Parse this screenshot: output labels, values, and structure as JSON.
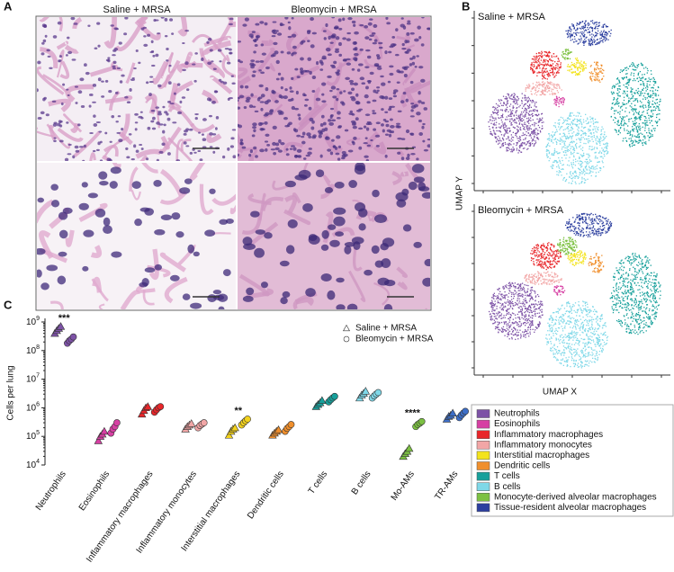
{
  "panel_a": {
    "label": "A",
    "titles": [
      "Saline + MRSA",
      "Bleomycin + MRSA"
    ]
  },
  "panel_b": {
    "label": "B",
    "plot_titles": [
      "Saline + MRSA",
      "Bleomycin + MRSA"
    ],
    "x_label": "UMAP X",
    "y_label": "UMAP Y",
    "legend": [
      {
        "name": "Neutrophils",
        "color": "#7d52a6"
      },
      {
        "name": "Eosinophils",
        "color": "#d63fa3"
      },
      {
        "name": "Inflammatory macrophages",
        "color": "#e8262a"
      },
      {
        "name": "Inflammatory monocytes",
        "color": "#f2a6a6"
      },
      {
        "name": "Interstitial macrophages",
        "color": "#f3e31c"
      },
      {
        "name": "Dendritic cells",
        "color": "#f08f2c"
      },
      {
        "name": "T cells",
        "color": "#17a09b"
      },
      {
        "name": "B cells",
        "color": "#7fd8e8"
      },
      {
        "name": "Monocyte-derived alveolar macrophages",
        "color": "#7cc142"
      },
      {
        "name": "Tissue-resident alveolar macrophages",
        "color": "#2c3f9f"
      }
    ]
  },
  "chart_data": {
    "type": "scatter",
    "label": "C",
    "y_label": "Cells per lung",
    "log_scale": true,
    "ylim": [
      10000,
      1000000000
    ],
    "yticks": [
      {
        "value": 10000,
        "label": "10",
        "exponent": "4"
      },
      {
        "value": 100000,
        "label": "10",
        "exponent": "5"
      },
      {
        "value": 1000000,
        "label": "10",
        "exponent": "6"
      },
      {
        "value": 10000000,
        "label": "10",
        "exponent": "7"
      },
      {
        "value": 100000000,
        "label": "10",
        "exponent": "8"
      },
      {
        "value": 1000000000,
        "label": "10",
        "exponent": "9"
      }
    ],
    "categories": [
      "Neutrophils",
      "Eosinophils",
      "Inflammatory macrophages",
      "Inflammatory monocytes",
      "Interstitial macrophages",
      "Dendritic cells",
      "T cells",
      "B cells",
      "Mo-AMs",
      "TR-AMs"
    ],
    "category_colors": [
      "#7d52a6",
      "#d63fa3",
      "#e8262a",
      "#f2a6a6",
      "#f3d21c",
      "#f08f2c",
      "#17a09b",
      "#7fd8e8",
      "#7cc142",
      "#3d6fc9"
    ],
    "annotations": [
      "***",
      null,
      null,
      null,
      "**",
      null,
      null,
      null,
      "****",
      null
    ],
    "series": [
      {
        "name": "Saline + MRSA",
        "marker": "triangle",
        "values": [
          [
            400000000,
            500000000,
            600000000,
            700000000
          ],
          [
            70000,
            100000,
            120000,
            150000
          ],
          [
            600000,
            800000,
            1000000,
            1100000
          ],
          [
            180000,
            220000,
            250000,
            280000
          ],
          [
            110000,
            150000,
            180000,
            200000
          ],
          [
            110000,
            130000,
            150000,
            170000
          ],
          [
            1100000,
            1300000,
            1500000,
            1800000
          ],
          [
            2200000,
            2800000,
            3200000,
            3800000
          ],
          [
            20000,
            25000,
            30000,
            38000
          ],
          [
            400000,
            500000,
            550000,
            650000
          ]
        ]
      },
      {
        "name": "Bleomycin + MRSA",
        "marker": "circle",
        "values": [
          [
            180000000,
            220000000,
            250000000,
            300000000
          ],
          [
            130000,
            180000,
            220000,
            300000
          ],
          [
            700000,
            850000,
            1000000,
            1100000
          ],
          [
            200000,
            240000,
            270000,
            300000
          ],
          [
            250000,
            300000,
            350000,
            400000
          ],
          [
            150000,
            190000,
            220000,
            260000
          ],
          [
            1600000,
            1900000,
            2200000,
            2500000
          ],
          [
            2200000,
            2600000,
            3000000,
            3400000
          ],
          [
            220000,
            260000,
            290000,
            330000
          ],
          [
            450000,
            550000,
            650000,
            750000
          ]
        ]
      }
    ]
  }
}
